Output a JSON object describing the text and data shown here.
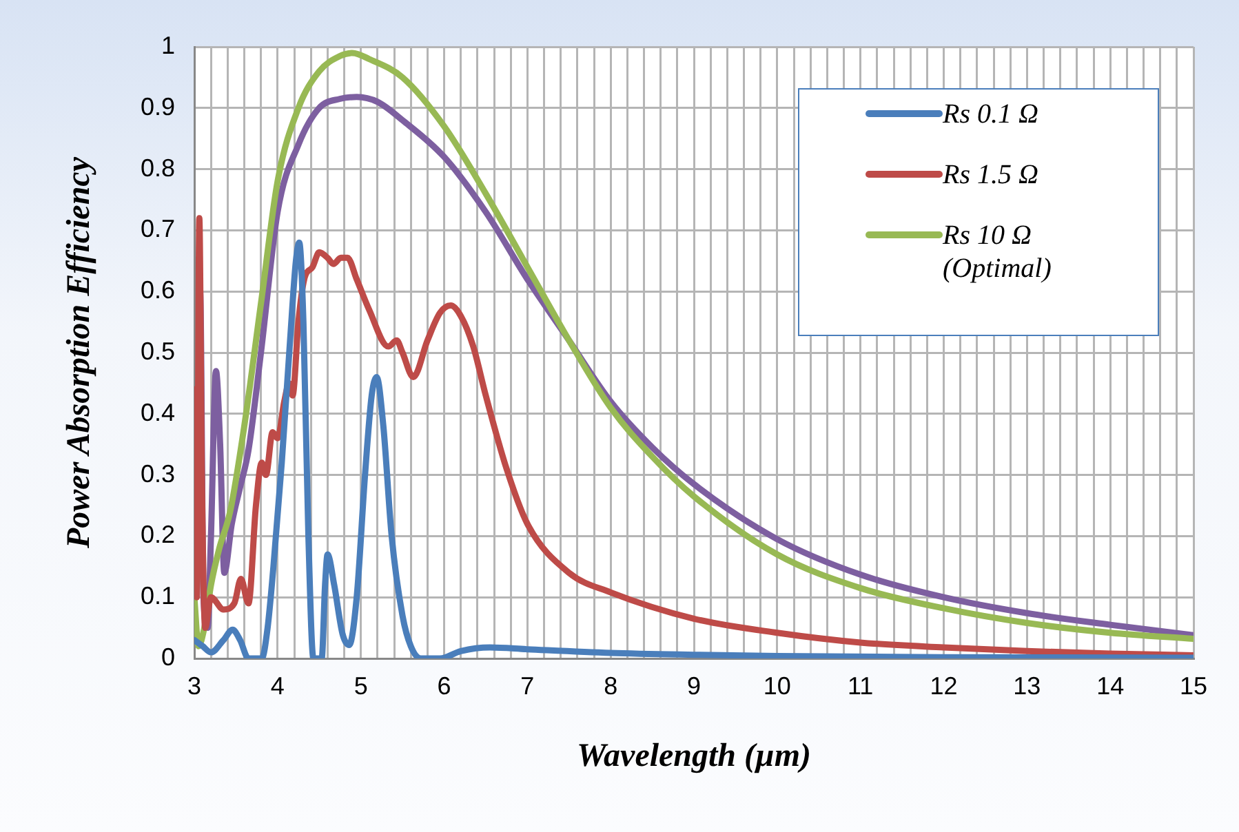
{
  "chart_data": {
    "type": "line",
    "xlabel": "Wavelength (µm)",
    "ylabel": "Power Absorption Efficiency",
    "xlim": [
      3,
      15
    ],
    "xticks": [
      3,
      {
        "value": 3.2,
        "label": null
      },
      {
        "value": 3.4,
        "label": null
      },
      {
        "value": 3.6,
        "label": null
      },
      {
        "value": 3.8,
        "label": null
      },
      4,
      {
        "value": 4.2,
        "label": null
      },
      {
        "value": 4.4,
        "label": null
      },
      {
        "value": 4.6,
        "label": null
      },
      {
        "value": 4.8,
        "label": null
      },
      5,
      {
        "value": 5.2,
        "label": null
      },
      {
        "value": 5.4,
        "label": null
      },
      {
        "value": 5.6,
        "label": null
      },
      {
        "value": 5.8,
        "label": null
      },
      6,
      {
        "value": 6.2,
        "label": null
      },
      {
        "value": 6.4,
        "label": null
      },
      {
        "value": 6.6,
        "label": null
      },
      {
        "value": 6.8,
        "label": null
      },
      7,
      {
        "value": 7.2,
        "label": null
      },
      {
        "value": 7.4,
        "label": null
      },
      {
        "value": 7.6,
        "label": null
      },
      {
        "value": 7.8,
        "label": null
      },
      8,
      {
        "value": 8.2,
        "label": null
      },
      {
        "value": 8.4,
        "label": null
      },
      {
        "value": 8.6,
        "label": null
      },
      {
        "value": 8.8,
        "label": null
      },
      9,
      {
        "value": 9.2,
        "label": null
      },
      {
        "value": 9.4,
        "label": null
      },
      {
        "value": 9.6,
        "label": null
      },
      {
        "value": 9.8,
        "label": null
      },
      10,
      {
        "value": 10.2,
        "label": null
      },
      {
        "value": 10.4,
        "label": null
      },
      {
        "value": 10.6,
        "label": null
      },
      {
        "value": 10.8,
        "label": null
      },
      11,
      {
        "value": 11.2,
        "label": null
      },
      {
        "value": 11.4,
        "label": null
      },
      {
        "value": 11.6,
        "label": null
      },
      {
        "value": 11.8,
        "label": null
      },
      12,
      {
        "value": 12.2,
        "label": null
      },
      {
        "value": 12.4,
        "label": null
      },
      {
        "value": 12.6,
        "label": null
      },
      {
        "value": 12.8,
        "label": null
      },
      13,
      {
        "value": 13.2,
        "label": null
      },
      {
        "value": 13.4,
        "label": null
      },
      {
        "value": 13.6,
        "label": null
      },
      {
        "value": 13.8,
        "label": null
      },
      14,
      {
        "value": 14.2,
        "label": null
      },
      {
        "value": 14.4,
        "label": null
      },
      {
        "value": 14.6,
        "label": null
      },
      {
        "value": 14.8,
        "label": null
      },
      15
    ],
    "ylim": [
      0,
      1
    ],
    "yticks": [
      0,
      0.1,
      0.2,
      0.3,
      0.4,
      0.5,
      0.6,
      0.7,
      0.8,
      0.9,
      1
    ],
    "grid": true,
    "legend": "top right",
    "marker": "none",
    "line_style": "solid",
    "series": [
      {
        "name": "Rs 0.1 Ω",
        "color": "#4a7ebb",
        "x": [
          3,
          3.1,
          3.2,
          3.35,
          3.46,
          3.55,
          3.65,
          3.81,
          3.88,
          3.95,
          4.05,
          4.15,
          4.22,
          4.26,
          4.31,
          4.37,
          4.43,
          4.53,
          4.57,
          4.6,
          4.68,
          4.78,
          4.86,
          4.95,
          5.05,
          5.13,
          5.19,
          5.27,
          5.37,
          5.5,
          5.6,
          5.72,
          5.95,
          6.2,
          6.55,
          7,
          8,
          9,
          10,
          12,
          15
        ],
        "values": [
          0.03,
          0.02,
          0.01,
          0.03,
          0.047,
          0.03,
          0,
          0,
          0.05,
          0.15,
          0.32,
          0.52,
          0.65,
          0.68,
          0.55,
          0.2,
          0,
          0,
          0.12,
          0.17,
          0.12,
          0.04,
          0.022,
          0.1,
          0.3,
          0.43,
          0.46,
          0.38,
          0.2,
          0.07,
          0.02,
          0,
          0,
          0.012,
          0.018,
          0.015,
          0.009,
          0.006,
          0.004,
          0.002,
          0.001
        ]
      },
      {
        "name": "Rs 1.5 Ω",
        "color": "#be4b48",
        "x": [
          3,
          3.03,
          3.06,
          3.09,
          3.13,
          3.2,
          3.35,
          3.48,
          3.56,
          3.65,
          3.74,
          3.81,
          3.86,
          3.94,
          4.0,
          4.08,
          4.14,
          4.18,
          4.25,
          4.32,
          4.42,
          4.5,
          4.6,
          4.67,
          4.76,
          4.84,
          4.95,
          5.1,
          5.33,
          5.43,
          5.5,
          5.63,
          5.8,
          5.95,
          6.08,
          6.2,
          6.35,
          6.5,
          6.75,
          7,
          7.5,
          8,
          9,
          10,
          11,
          12,
          13,
          14,
          15
        ],
        "values": [
          0.44,
          0.1,
          0.72,
          0.3,
          0.05,
          0.1,
          0.08,
          0.09,
          0.13,
          0.09,
          0.25,
          0.32,
          0.3,
          0.37,
          0.36,
          0.42,
          0.45,
          0.43,
          0.55,
          0.62,
          0.64,
          0.664,
          0.655,
          0.645,
          0.655,
          0.655,
          0.62,
          0.57,
          0.51,
          0.52,
          0.5,
          0.46,
          0.52,
          0.565,
          0.577,
          0.56,
          0.51,
          0.43,
          0.31,
          0.22,
          0.14,
          0.108,
          0.065,
          0.042,
          0.026,
          0.018,
          0.012,
          0.008,
          0.005
        ]
      },
      {
        "name": "Rs 10 Ω (Optimal)",
        "color": "#98b954",
        "x": [
          3,
          3.05,
          3.12,
          3.2,
          3.3,
          3.43,
          3.6,
          3.8,
          4,
          4.25,
          4.5,
          4.75,
          4.9,
          5.1,
          5.5,
          6,
          6.5,
          7,
          7.5,
          8,
          8.5,
          9,
          10,
          11,
          12,
          13,
          14,
          15
        ],
        "values": [
          0.1,
          0.02,
          0.05,
          0.12,
          0.18,
          0.24,
          0.38,
          0.58,
          0.78,
          0.9,
          0.96,
          0.985,
          0.99,
          0.98,
          0.95,
          0.87,
          0.76,
          0.64,
          0.52,
          0.41,
          0.33,
          0.265,
          0.17,
          0.115,
          0.082,
          0.058,
          0.042,
          0.032
        ]
      },
      {
        "color": "#7d5fa0",
        "x": [
          3,
          3.04,
          3.07,
          3.11,
          3.16,
          3.2,
          3.26,
          3.31,
          3.36,
          3.45,
          3.55,
          3.65,
          3.8,
          4,
          4.25,
          4.5,
          4.75,
          4.95,
          5.2,
          5.5,
          6,
          6.5,
          7,
          7.5,
          8,
          8.5,
          9,
          10,
          11,
          12,
          13,
          14,
          15
        ],
        "values": [
          0.15,
          0.3,
          0.6,
          0.1,
          0.05,
          0.2,
          0.47,
          0.35,
          0.14,
          0.22,
          0.28,
          0.34,
          0.5,
          0.73,
          0.84,
          0.9,
          0.915,
          0.918,
          0.91,
          0.88,
          0.82,
          0.73,
          0.62,
          0.52,
          0.42,
          0.345,
          0.285,
          0.195,
          0.137,
          0.1,
          0.074,
          0.055,
          0.038
        ]
      }
    ]
  }
}
